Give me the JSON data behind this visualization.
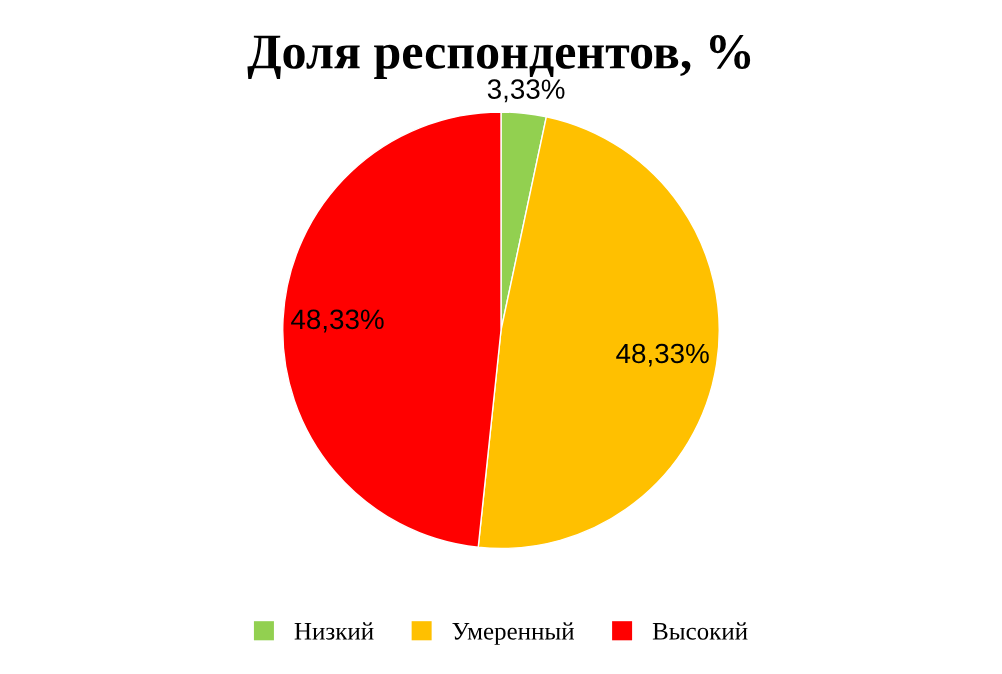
{
  "chart_data": {
    "type": "pie",
    "title": "Доля респондентов, %",
    "categories": [
      "Низкий",
      "Умеренный",
      "Высокий"
    ],
    "values": [
      3.33,
      48.33,
      48.33
    ],
    "value_labels": [
      "3,33%",
      "48,33%",
      "48,33%"
    ],
    "colors": [
      "#92d050",
      "#ffc000",
      "#ff0000"
    ],
    "legend": "bottom"
  }
}
